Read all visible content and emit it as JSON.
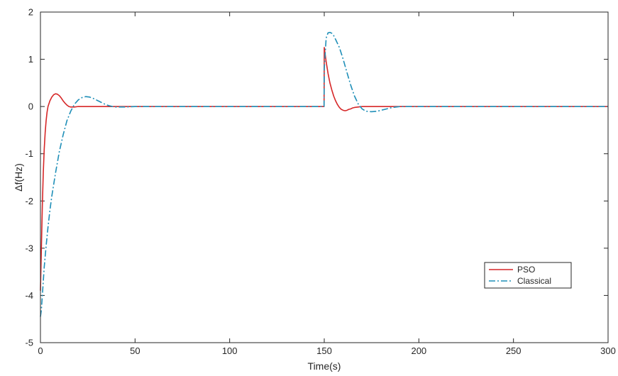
{
  "chart_data": {
    "type": "line",
    "title": "",
    "xlabel": "Time(s)",
    "ylabel": "Δf(Hz)",
    "xlim": [
      0,
      300
    ],
    "ylim": [
      -5,
      2
    ],
    "xticks": [
      0,
      50,
      100,
      150,
      200,
      250,
      300
    ],
    "yticks": [
      -5,
      -4,
      -3,
      -2,
      -1,
      0,
      1,
      2
    ],
    "grid": false,
    "legend_position": "lower-right",
    "series": [
      {
        "name": "PSO",
        "color": "#d62728",
        "style": "solid",
        "x": [
          0,
          0.5,
          1,
          1.5,
          2,
          2.5,
          3,
          3.5,
          4,
          5,
          6,
          7,
          8,
          9,
          10,
          11,
          12,
          13,
          14,
          15,
          16,
          18,
          20,
          22,
          25,
          30,
          40,
          60,
          100,
          149.9,
          150,
          150.5,
          151,
          152,
          153,
          154,
          155,
          156,
          157,
          158,
          159,
          160,
          161,
          162,
          163,
          164,
          165,
          166,
          168,
          170,
          175,
          200,
          250,
          300
        ],
        "y": [
          -3.9,
          -3.0,
          -2.1,
          -1.4,
          -0.9,
          -0.55,
          -0.3,
          -0.12,
          0.0,
          0.12,
          0.2,
          0.25,
          0.27,
          0.26,
          0.23,
          0.18,
          0.12,
          0.07,
          0.03,
          0.0,
          -0.01,
          -0.01,
          0.0,
          0.0,
          0.0,
          0.0,
          0.0,
          0.0,
          0.0,
          0.0,
          1.25,
          1.1,
          0.95,
          0.7,
          0.5,
          0.35,
          0.22,
          0.12,
          0.04,
          -0.02,
          -0.06,
          -0.08,
          -0.09,
          -0.08,
          -0.06,
          -0.05,
          -0.03,
          -0.02,
          -0.01,
          0.0,
          0.0,
          0.0,
          0.0,
          0.0
        ]
      },
      {
        "name": "Classical",
        "color": "#1f8fb8",
        "style": "dashdot",
        "x": [
          0,
          0.5,
          1,
          1.5,
          2,
          3,
          4,
          5,
          6,
          8,
          10,
          12,
          14,
          16,
          18,
          20,
          22,
          24,
          26,
          28,
          30,
          32,
          34,
          36,
          38,
          40,
          45,
          50,
          60,
          100,
          149.9,
          150,
          151,
          152,
          153,
          154,
          155,
          156,
          158,
          160,
          162,
          164,
          166,
          168,
          170,
          172,
          175,
          178,
          180,
          183,
          186,
          190,
          195,
          200,
          250,
          300
        ],
        "y": [
          -4.45,
          -4.3,
          -4.0,
          -3.7,
          -3.4,
          -2.95,
          -2.55,
          -2.2,
          -1.9,
          -1.4,
          -0.95,
          -0.6,
          -0.3,
          -0.1,
          0.05,
          0.14,
          0.19,
          0.21,
          0.2,
          0.17,
          0.13,
          0.09,
          0.05,
          0.02,
          0.0,
          -0.01,
          -0.01,
          0.0,
          0.0,
          0.0,
          0.0,
          0.8,
          1.45,
          1.56,
          1.57,
          1.55,
          1.5,
          1.42,
          1.25,
          1.0,
          0.72,
          0.45,
          0.22,
          0.05,
          -0.05,
          -0.1,
          -0.11,
          -0.1,
          -0.08,
          -0.05,
          -0.02,
          0.0,
          0.0,
          0.0,
          0.0,
          0.0
        ]
      }
    ]
  }
}
